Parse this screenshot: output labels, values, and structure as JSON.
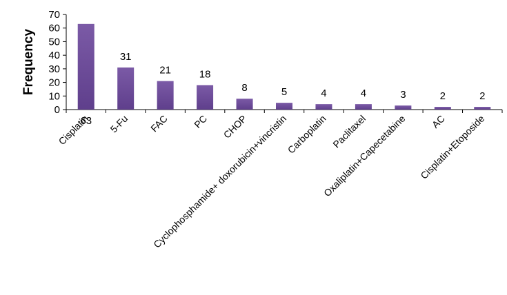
{
  "chart_data": {
    "type": "bar",
    "ylabel": "Frequency",
    "xlabel": "",
    "ylim": [
      0,
      70
    ],
    "yticks": [
      0,
      10,
      20,
      30,
      40,
      50,
      60,
      70
    ],
    "categories": [
      "Cisplatin",
      "5-Fu",
      "FAC",
      "PC",
      "CHOP",
      "Cyclophosphamide+ doxorubicin+vincristin",
      "Carboplatin",
      "Paclitaxel",
      "Oxaliplatin+Capecetabine",
      "AC",
      "Cisplatin+Etoposide"
    ],
    "values": [
      63,
      31,
      21,
      18,
      8,
      5,
      4,
      4,
      3,
      2,
      2
    ],
    "bar_color": "#7b5aa6",
    "bar_color_dark": "#5f3f8c",
    "grid": false,
    "legend": "none"
  }
}
